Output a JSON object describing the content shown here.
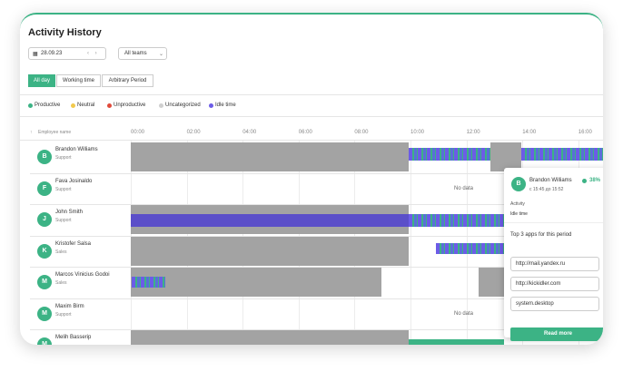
{
  "header": {
    "title": "Activity History",
    "date": "28.09.23",
    "team_filter": "All teams"
  },
  "tabs": [
    "All day",
    "Working time",
    "Arbitrary Period"
  ],
  "legend": [
    {
      "label": "Productive",
      "color": "#3cb385"
    },
    {
      "label": "Neutral",
      "color": "#f2c94c"
    },
    {
      "label": "Unproductive",
      "color": "#e04a3b"
    },
    {
      "label": "Uncategorized",
      "color": "#cfcfcf"
    },
    {
      "label": "Idle time",
      "color": "#6c5ce7"
    }
  ],
  "table": {
    "header": "Employee name",
    "times": [
      "00:00",
      "02:00",
      "04:00",
      "06:00",
      "08:00",
      "10:00",
      "12:00",
      "14:00",
      "16:00"
    ],
    "rows": [
      {
        "initial": "B",
        "name": "Brandon Williams",
        "team": "Support"
      },
      {
        "initial": "F",
        "name": "Fava Josinaldo",
        "team": "Support",
        "status": "No data"
      },
      {
        "initial": "J",
        "name": "John Smith",
        "team": "Support"
      },
      {
        "initial": "K",
        "name": "Kristofer Salsa",
        "team": "Sales"
      },
      {
        "initial": "M",
        "name": "Marcos Vinicius Godoi",
        "team": "Sales"
      },
      {
        "initial": "M",
        "name": "Maxim Birm",
        "team": "Support",
        "status": "No data"
      },
      {
        "initial": "M",
        "name": "Melih Basserip"
      }
    ]
  },
  "popup": {
    "initial": "B",
    "name": "Brandon Williams",
    "percent": "38%",
    "time": "c 15:45 до 15:52",
    "activity_label": "Activity",
    "activity": "Idle time",
    "apps_title": "Top 3 apps for this period",
    "apps": [
      "http://mail.yandex.ru",
      "http://kickidler.com",
      "system.desktop"
    ],
    "button": "Read more"
  }
}
